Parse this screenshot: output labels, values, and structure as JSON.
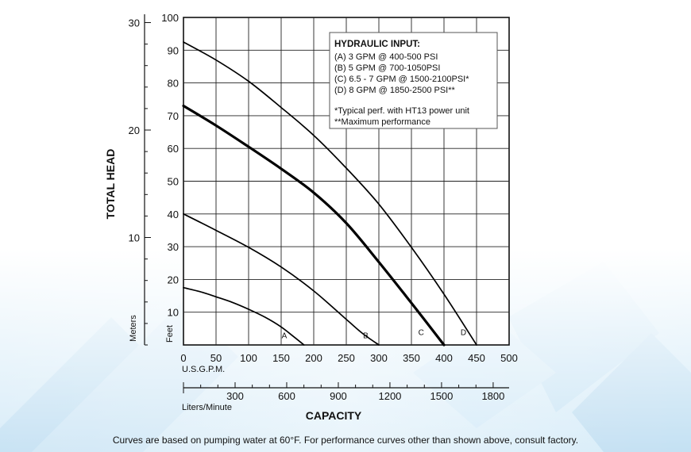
{
  "chart_data": {
    "type": "line",
    "xlabel": "CAPACITY",
    "ylabel": "TOTAL HEAD",
    "x_unit": "U.S.G.P.M.",
    "x_unit2": "Liters/Minute",
    "y_unit": "Feet",
    "y_unit2": "Meters",
    "xlim": [
      0,
      500
    ],
    "ylim": [
      0,
      100
    ],
    "x_ticks": [
      "0",
      "50",
      "100",
      "150",
      "200",
      "250",
      "300",
      "350",
      "400",
      "450",
      "500"
    ],
    "y_ticks": [
      "10",
      "20",
      "30",
      "40",
      "50",
      "60",
      "70",
      "80",
      "90",
      "100"
    ],
    "x2_ticks": [
      {
        "value": 300,
        "label": "300"
      },
      {
        "value": 600,
        "label": "600"
      },
      {
        "value": 900,
        "label": "900"
      },
      {
        "value": 1200,
        "label": "1200"
      },
      {
        "value": 1500,
        "label": "1500"
      },
      {
        "value": 1800,
        "label": "1800"
      }
    ],
    "y2_ticks": [
      {
        "value": 10,
        "label": "10"
      },
      {
        "value": 20,
        "label": "20"
      },
      {
        "value": 30,
        "label": "30"
      }
    ],
    "grid": true,
    "series": [
      {
        "name": "A",
        "label_at": [
          150,
          2
        ],
        "bold": false,
        "x": [
          0,
          25,
          50,
          75,
          100,
          125,
          150,
          170,
          185
        ],
        "y": [
          17.5,
          16.3,
          14.7,
          13,
          10.9,
          8.5,
          5.5,
          2.4,
          0
        ]
      },
      {
        "name": "B",
        "label_at": [
          275,
          2
        ],
        "bold": false,
        "x": [
          0,
          50,
          100,
          150,
          200,
          250,
          275,
          300
        ],
        "y": [
          40,
          35,
          29.8,
          23.8,
          16.5,
          7.8,
          3.5,
          0
        ]
      },
      {
        "name": "C",
        "label_at": [
          360,
          3
        ],
        "bold": true,
        "x": [
          0,
          50,
          100,
          150,
          200,
          250,
          300,
          350,
          400
        ],
        "y": [
          73,
          67,
          60.5,
          53.8,
          46.5,
          37.2,
          25.3,
          12.8,
          0
        ]
      },
      {
        "name": "D",
        "label_at": [
          425,
          3
        ],
        "bold": false,
        "x": [
          0,
          50,
          100,
          150,
          200,
          250,
          300,
          350,
          400,
          450
        ],
        "y": [
          92.5,
          87,
          80.5,
          72.5,
          64,
          54,
          43,
          29.8,
          15.5,
          0
        ]
      }
    ],
    "legend": {
      "position": "top-right",
      "title": "HYDRAULIC INPUT:",
      "lines": [
        "(A) 3 GPM @ 400-500 PSI",
        "(B) 5 GPM @ 700-1050PSI",
        "(C) 6.5 - 7 GPM @ 1500-2100PSI*",
        "(D) 8 GPM @ 1850-2500 PSI**"
      ],
      "notes": [
        "*Typical perf. with HT13 power unit",
        "**Maximum performance"
      ]
    }
  },
  "footer": {
    "caption": "Curves are based on pumping water at 60°F. For performance curves other than shown above, consult factory."
  }
}
